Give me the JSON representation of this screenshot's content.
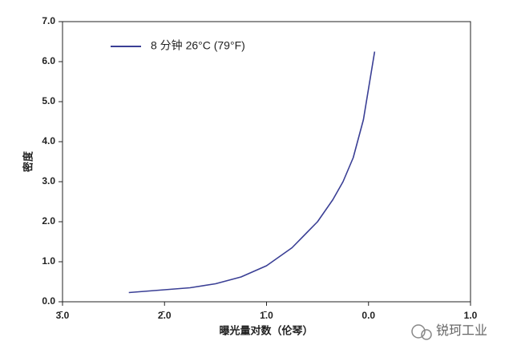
{
  "chart_data": {
    "type": "line",
    "ylabel": "密度",
    "xlabel": "曝光量对数（伦琴）",
    "watermark": "锐珂工业",
    "legend": "upper-left",
    "x": [
      -2.35,
      -2.0,
      -1.75,
      -1.5,
      -1.25,
      -1.0,
      -0.75,
      -0.5,
      -0.35,
      -0.25,
      -0.15,
      -0.05,
      0.06
    ],
    "series": [
      {
        "name": "8 分钟 26°C (79°F)",
        "color": "#3a3f95",
        "values": [
          0.23,
          0.3,
          0.35,
          0.45,
          0.62,
          0.9,
          1.35,
          2.0,
          2.55,
          3.0,
          3.6,
          4.55,
          6.25
        ]
      }
    ],
    "xlim": [
      -3,
      1
    ],
    "xticks": [
      {
        "value": -3,
        "label": "3̄.0"
      },
      {
        "value": -2,
        "label": "2̄.0"
      },
      {
        "value": -1,
        "label": "1̄.0"
      },
      {
        "value": 0,
        "label": "0.0"
      },
      {
        "value": 1,
        "label": "1.0"
      }
    ],
    "ylim": [
      0,
      7
    ],
    "yticks": [
      {
        "value": 0,
        "label": "0.0"
      },
      {
        "value": 1,
        "label": "1.0"
      },
      {
        "value": 2,
        "label": "2.0"
      },
      {
        "value": 3,
        "label": "3.0"
      },
      {
        "value": 4,
        "label": "4.0"
      },
      {
        "value": 5,
        "label": "5.0"
      },
      {
        "value": 6,
        "label": "6.0"
      },
      {
        "value": 7,
        "label": "7.0"
      }
    ],
    "grid": false
  }
}
